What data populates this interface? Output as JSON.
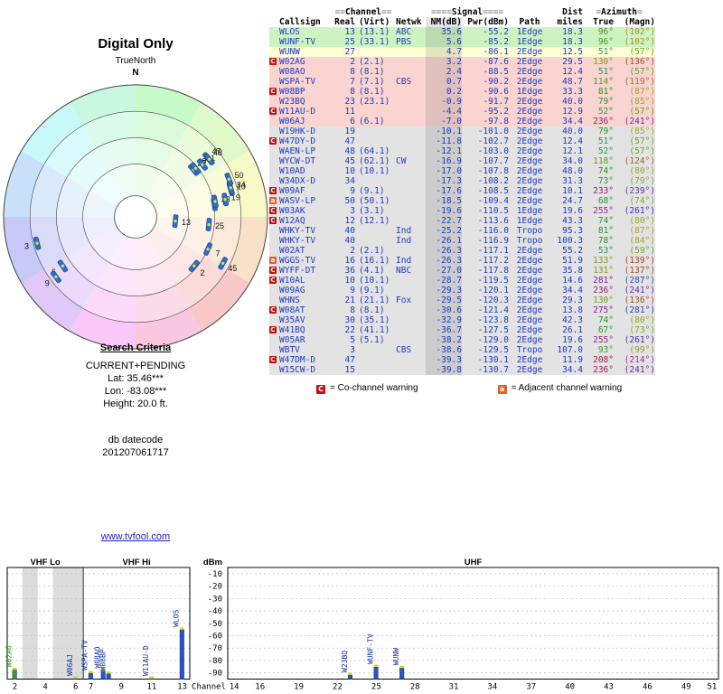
{
  "radar": {
    "title": "Digital Only",
    "north_label": "TrueNorth",
    "north_letter": "N"
  },
  "search": {
    "heading": "Search Criteria",
    "mode": "CURRENT+PENDING",
    "lat": "Lat: 35.46***",
    "lon": "Lon: -83.08***",
    "height": "Height: 20.0 ft.",
    "datecode_label": "db datecode",
    "datecode": "201207061717"
  },
  "link": {
    "text": "www.tvfool.com"
  },
  "table": {
    "group_headers": {
      "channel": {
        "pre": "≡≡",
        "label": "Channel",
        "post": "≡≡"
      },
      "signal": {
        "pre": "≡≡≡≡",
        "label": "Signal",
        "post": "≡≡≡≡"
      },
      "dist": "Dist",
      "azimuth": {
        "pre": "≡",
        "label": "Azimuth",
        "post": "≡"
      }
    },
    "columns": {
      "callsign": "Callsign",
      "real": "Real",
      "virt": "(Virt)",
      "netwk": "Netwk",
      "nm": "NM(dB)",
      "pwr": "Pwr(dBm)",
      "path": "Path",
      "miles": "miles",
      "true": "True",
      "magn": "(Magn)"
    },
    "rows": [
      {
        "w": "",
        "c": "WLOS",
        "r": "13",
        "v": "(13.1)",
        "n": "ABC",
        "nm": "35.6",
        "p": "-55.2",
        "path": "1Edge",
        "d": "18.3",
        "t": 96,
        "m": 102,
        "b": "green"
      },
      {
        "w": "",
        "c": "WUNF-TV",
        "r": "25",
        "v": "(33.1)",
        "n": "PBS",
        "nm": "5.6",
        "p": "-85.2",
        "path": "1Edge",
        "d": "18.3",
        "t": 96,
        "m": 102,
        "b": "green"
      },
      {
        "w": "",
        "c": "WUNW",
        "r": "27",
        "v": "",
        "n": "",
        "nm": "4.7",
        "p": "-86.1",
        "path": "2Edge",
        "d": "12.5",
        "t": 51,
        "m": 57,
        "b": "yellow"
      },
      {
        "w": "C",
        "c": "W02AG",
        "r": "2",
        "v": "(2.1)",
        "n": "",
        "nm": "3.2",
        "p": "-87.6",
        "path": "2Edge",
        "d": "29.5",
        "t": 130,
        "m": 136,
        "b": "pink"
      },
      {
        "w": "",
        "c": "W08AO",
        "r": "8",
        "v": "(8.1)",
        "n": "",
        "nm": "2.4",
        "p": "-88.5",
        "path": "2Edge",
        "d": "12.4",
        "t": 51,
        "m": 57,
        "b": "pink"
      },
      {
        "w": "",
        "c": "WSPA-TV",
        "r": "7",
        "v": "(7.1)",
        "n": "CBS",
        "nm": "0.7",
        "p": "-90.2",
        "path": "2Edge",
        "d": "48.7",
        "t": 114,
        "m": 119,
        "b": "pink"
      },
      {
        "w": "C",
        "c": "W08BP",
        "r": "8",
        "v": "(8.1)",
        "n": "",
        "nm": "0.2",
        "p": "-90.6",
        "path": "1Edge",
        "d": "33.3",
        "t": 81,
        "m": 87,
        "b": "pink"
      },
      {
        "w": "",
        "c": "W23BQ",
        "r": "23",
        "v": "(23.1)",
        "n": "",
        "nm": "-0.9",
        "p": "-91.7",
        "path": "2Edge",
        "d": "40.0",
        "t": 79,
        "m": 85,
        "b": "pink"
      },
      {
        "w": "C",
        "c": "W11AU-D",
        "r": "11",
        "v": "",
        "n": "",
        "nm": "-4.4",
        "p": "-95.2",
        "path": "2Edge",
        "d": "12.9",
        "t": 52,
        "m": 57,
        "b": "pink"
      },
      {
        "w": "",
        "c": "W06AJ",
        "r": "6",
        "v": "(6.1)",
        "n": "",
        "nm": "-7.0",
        "p": "-97.8",
        "path": "2Edge",
        "d": "34.4",
        "t": 236,
        "m": 241,
        "b": "pink"
      },
      {
        "w": "",
        "c": "W19HK-D",
        "r": "19",
        "v": "",
        "n": "",
        "nm": "-10.1",
        "p": "-101.0",
        "path": "2Edge",
        "d": "40.0",
        "t": 79,
        "m": 85,
        "b": "gray"
      },
      {
        "w": "C",
        "c": "W47DY-D",
        "r": "47",
        "v": "",
        "n": "",
        "nm": "-11.8",
        "p": "-102.7",
        "path": "2Edge",
        "d": "12.4",
        "t": 51,
        "m": 57,
        "b": "gray"
      },
      {
        "w": "",
        "c": "WAEN-LP",
        "r": "48",
        "v": "(64.1)",
        "n": "",
        "nm": "-12.1",
        "p": "-103.0",
        "path": "2Edge",
        "d": "12.1",
        "t": 52,
        "m": 57,
        "b": "gray"
      },
      {
        "w": "",
        "c": "WYCW-DT",
        "r": "45",
        "v": "(62.1)",
        "n": "CW",
        "nm": "-16.9",
        "p": "-107.7",
        "path": "2Edge",
        "d": "34.0",
        "t": 118,
        "m": 124,
        "b": "gray"
      },
      {
        "w": "",
        "c": "W10AD",
        "r": "10",
        "v": "(10.1)",
        "n": "",
        "nm": "-17.0",
        "p": "-107.8",
        "path": "2Edge",
        "d": "48.0",
        "t": 74,
        "m": 80,
        "b": "gray"
      },
      {
        "w": "",
        "c": "W34DX-D",
        "r": "34",
        "v": "",
        "n": "",
        "nm": "-17.3",
        "p": "-108.2",
        "path": "2Edge",
        "d": "31.3",
        "t": 73,
        "m": 79,
        "b": "gray"
      },
      {
        "w": "C",
        "c": "W09AF",
        "r": "9",
        "v": "(9.1)",
        "n": "",
        "nm": "-17.6",
        "p": "-108.5",
        "path": "2Edge",
        "d": "10.1",
        "t": 233,
        "m": 239,
        "b": "gray"
      },
      {
        "w": "a",
        "c": "WASV-LP",
        "r": "50",
        "v": "(50.1)",
        "n": "",
        "nm": "-18.5",
        "p": "-109.4",
        "path": "2Edge",
        "d": "24.7",
        "t": 68,
        "m": 74,
        "b": "gray"
      },
      {
        "w": "C",
        "c": "W03AK",
        "r": "3",
        "v": "(3.1)",
        "n": "",
        "nm": "-19.6",
        "p": "-110.5",
        "path": "1Edge",
        "d": "19.6",
        "t": 255,
        "m": 261,
        "b": "gray"
      },
      {
        "w": "C",
        "c": "W12AQ",
        "r": "12",
        "v": "(12.1)",
        "n": "",
        "nm": "-22.7",
        "p": "-113.6",
        "path": "1Edge",
        "d": "43.3",
        "t": 74,
        "m": 80,
        "b": "gray"
      },
      {
        "w": "",
        "c": "WHKY-TV",
        "r": "40",
        "v": "",
        "n": "Ind",
        "nm": "-25.2",
        "p": "-116.0",
        "path": "Tropo",
        "d": "95.3",
        "t": 81,
        "m": 87,
        "b": "gray"
      },
      {
        "w": "",
        "c": "WHKY-TV",
        "r": "40",
        "v": "",
        "n": "Ind",
        "nm": "-26.1",
        "p": "-116.9",
        "path": "Tropo",
        "d": "100.3",
        "t": 78,
        "m": 84,
        "b": "gray"
      },
      {
        "w": "",
        "c": "W02AT",
        "r": "2",
        "v": "(2.1)",
        "n": "",
        "nm": "-26.3",
        "p": "-117.1",
        "path": "2Edge",
        "d": "55.2",
        "t": 53,
        "m": 59,
        "b": "gray"
      },
      {
        "w": "a",
        "c": "WGGS-TV",
        "r": "16",
        "v": "(16.1)",
        "n": "Ind",
        "nm": "-26.3",
        "p": "-117.2",
        "path": "2Edge",
        "d": "51.9",
        "t": 133,
        "m": 139,
        "b": "gray"
      },
      {
        "w": "C",
        "c": "WYFF-DT",
        "r": "36",
        "v": "(4.1)",
        "n": "NBC",
        "nm": "-27.0",
        "p": "-117.8",
        "path": "2Edge",
        "d": "35.8",
        "t": 131,
        "m": 137,
        "b": "gray"
      },
      {
        "w": "C",
        "c": "W10AL",
        "r": "10",
        "v": "(10.1)",
        "n": "",
        "nm": "-28.7",
        "p": "-119.5",
        "path": "2Edge",
        "d": "14.6",
        "t": 281,
        "m": 287,
        "b": "gray"
      },
      {
        "w": "",
        "c": "W09AG",
        "r": "9",
        "v": "(9.1)",
        "n": "",
        "nm": "-29.3",
        "p": "-120.1",
        "path": "2Edge",
        "d": "34.4",
        "t": 236,
        "m": 241,
        "b": "gray"
      },
      {
        "w": "",
        "c": "WHNS",
        "r": "21",
        "v": "(21.1)",
        "n": "Fox",
        "nm": "-29.5",
        "p": "-120.3",
        "path": "2Edge",
        "d": "29.3",
        "t": 130,
        "m": 136,
        "b": "gray"
      },
      {
        "w": "C",
        "c": "W08AT",
        "r": "8",
        "v": "(8.1)",
        "n": "",
        "nm": "-30.6",
        "p": "-121.4",
        "path": "2Edge",
        "d": "13.8",
        "t": 275,
        "m": 281,
        "b": "gray"
      },
      {
        "w": "",
        "c": "W35AV",
        "r": "30",
        "v": "(35.1)",
        "n": "",
        "nm": "-32.9",
        "p": "-123.8",
        "path": "2Edge",
        "d": "42.3",
        "t": 74,
        "m": 80,
        "b": "gray"
      },
      {
        "w": "C",
        "c": "W41BQ",
        "r": "22",
        "v": "(41.1)",
        "n": "",
        "nm": "-36.7",
        "p": "-127.5",
        "path": "2Edge",
        "d": "26.1",
        "t": 67,
        "m": 73,
        "b": "gray"
      },
      {
        "w": "",
        "c": "W05AR",
        "r": "5",
        "v": "(5.1)",
        "n": "",
        "nm": "-38.2",
        "p": "-129.0",
        "path": "2Edge",
        "d": "19.6",
        "t": 255,
        "m": 261,
        "b": "gray"
      },
      {
        "w": "",
        "c": "WBTV",
        "r": "3",
        "v": "",
        "n": "CBS",
        "nm": "-38.6",
        "p": "-129.5",
        "path": "Tropo",
        "d": "107.0",
        "t": 93,
        "m": 99,
        "b": "gray"
      },
      {
        "w": "C",
        "c": "W47DM-D",
        "r": "47",
        "v": "",
        "n": "",
        "nm": "-39.3",
        "p": "-130.1",
        "path": "2Edge",
        "d": "11.9",
        "t": 208,
        "m": 214,
        "b": "gray"
      },
      {
        "w": "",
        "c": "W15CW-D",
        "r": "15",
        "v": "",
        "n": "",
        "nm": "-39.8",
        "p": "-130.7",
        "path": "2Edge",
        "d": "34.4",
        "t": 236,
        "m": 241,
        "b": "gray"
      }
    ]
  },
  "legend": {
    "co": {
      "symbol": "C",
      "text": "= Co-channel warning"
    },
    "adj": {
      "symbol": "a",
      "text": "= Adjacent channel warning"
    }
  },
  "chart_data": [
    {
      "type": "scatter",
      "subtype": "polar-radar",
      "title": "Digital Only",
      "north_label": "TrueNorth",
      "points": [
        {
          "channel": 13,
          "azimuth": 96,
          "nm_db": 35.6
        },
        {
          "channel": 25,
          "azimuth": 96,
          "nm_db": 5.6
        },
        {
          "channel": 27,
          "azimuth": 51,
          "nm_db": 4.7
        },
        {
          "channel": 2,
          "azimuth": 130,
          "nm_db": 3.2
        },
        {
          "channel": 8,
          "azimuth": 51,
          "nm_db": 2.4
        },
        {
          "channel": 7,
          "azimuth": 114,
          "nm_db": 0.7
        },
        {
          "channel": 8,
          "azimuth": 81,
          "nm_db": 0.2
        },
        {
          "channel": 23,
          "azimuth": 79,
          "nm_db": -0.9
        },
        {
          "channel": 11,
          "azimuth": 52,
          "nm_db": -4.4
        },
        {
          "channel": 6,
          "azimuth": 236,
          "nm_db": -7.0
        },
        {
          "channel": 19,
          "azimuth": 79,
          "nm_db": -10.1
        },
        {
          "channel": 47,
          "azimuth": 51,
          "nm_db": -11.8
        },
        {
          "channel": 48,
          "azimuth": 52,
          "nm_db": -12.1
        },
        {
          "channel": 45,
          "azimuth": 118,
          "nm_db": -16.9
        },
        {
          "channel": 10,
          "azimuth": 74,
          "nm_db": -17.0
        },
        {
          "channel": 34,
          "azimuth": 73,
          "nm_db": -17.3
        },
        {
          "channel": 9,
          "azimuth": 233,
          "nm_db": -17.6
        },
        {
          "channel": 50,
          "azimuth": 68,
          "nm_db": -18.5
        },
        {
          "channel": 3,
          "azimuth": 255,
          "nm_db": -19.6
        }
      ]
    },
    {
      "type": "bar",
      "ylabel": "dBm",
      "xlabel": "Channel",
      "ylim": [
        -95,
        -5
      ],
      "yticks": [
        -10,
        -20,
        -30,
        -40,
        -50,
        -60,
        -70,
        -80,
        -90
      ],
      "sections": [
        {
          "label": "VHF Lo"
        },
        {
          "label": "VHF Hi"
        },
        {
          "label": "UHF"
        }
      ],
      "vhf_ticks": [
        2,
        4,
        6,
        7,
        9,
        11,
        13
      ],
      "uhf_ticks": [
        14,
        16,
        19,
        22,
        25,
        28,
        31,
        34,
        37,
        40,
        43,
        46,
        49,
        51
      ],
      "shaded_vhf_channels": [
        [
          3,
          3
        ],
        [
          5,
          6
        ]
      ],
      "bars": [
        {
          "callsign": "W02AG",
          "channel": 2,
          "dbm": -87.6,
          "color": "#3f9b28"
        },
        {
          "callsign": "W06AJ",
          "channel": 6,
          "dbm": -97.8
        },
        {
          "callsign": "WSPA-TV",
          "channel": 7,
          "dbm": -90.2
        },
        {
          "callsign": "W08AO",
          "channel": 8,
          "dbm": -88.5
        },
        {
          "callsign": "W08BP",
          "channel": 8,
          "dbm": -90.6
        },
        {
          "callsign": "W11AU-D",
          "channel": 11,
          "dbm": -95.2
        },
        {
          "callsign": "WLOS",
          "channel": 13,
          "dbm": -55.2
        },
        {
          "callsign": "W23BQ",
          "channel": 23,
          "dbm": -91.7
        },
        {
          "callsign": "WUNF-TV",
          "channel": 25,
          "dbm": -85.2
        },
        {
          "callsign": "WUNW",
          "channel": 27,
          "dbm": -86.1
        }
      ]
    }
  ]
}
